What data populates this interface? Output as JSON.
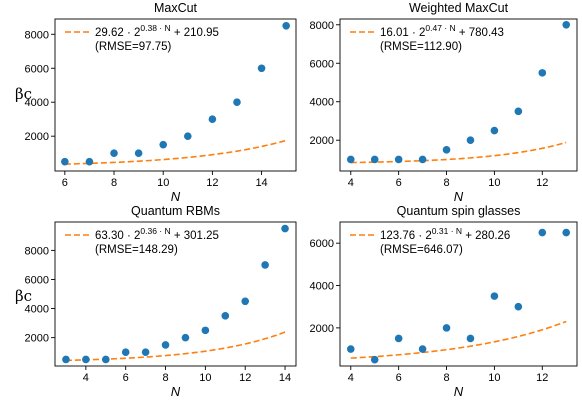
{
  "figure": {
    "shared_ylabel": "βc"
  },
  "chart_data": [
    {
      "type": "scatter",
      "title": "MaxCut",
      "xlabel": "N",
      "ylabel": "βc",
      "xlim": [
        5.6,
        15.4
      ],
      "ylim": [
        -50,
        8900
      ],
      "xticks": [
        6,
        8,
        10,
        12,
        14
      ],
      "yticks": [
        2000,
        4000,
        6000,
        8000
      ],
      "grid": false,
      "legend_position": "top-left",
      "fit": {
        "a": 29.62,
        "b": 0.38,
        "c": 210.95
      },
      "legend": {
        "fit_prefix": "29.62 · 2",
        "fit_exponent": "0.38 · N",
        "fit_suffix": " + 210.95",
        "rmse": "(RMSE=97.75)"
      },
      "series": [
        {
          "x": [
            6,
            7,
            8,
            9,
            10,
            11,
            12,
            13,
            14,
            15
          ],
          "y": [
            500,
            500,
            1000,
            1000,
            1500,
            2000,
            3000,
            4000,
            6000,
            8500
          ]
        }
      ],
      "colors": {
        "points": "#1f77b4",
        "fit": "#ff7f0e"
      }
    },
    {
      "type": "scatter",
      "title": "Weighted MaxCut",
      "xlabel": "N",
      "ylabel": "",
      "xlim": [
        3.55,
        13.45
      ],
      "ylim": [
        400,
        8300
      ],
      "xticks": [
        4,
        6,
        8,
        10,
        12
      ],
      "yticks": [
        2000,
        4000,
        6000,
        8000
      ],
      "grid": false,
      "legend_position": "top-left",
      "fit": {
        "a": 16.01,
        "b": 0.47,
        "c": 780.43
      },
      "legend": {
        "fit_prefix": "16.01 · 2",
        "fit_exponent": "0.47 · N",
        "fit_suffix": " + 780.43",
        "rmse": "(RMSE=112.90)"
      },
      "series": [
        {
          "x": [
            4,
            5,
            6,
            7,
            8,
            9,
            10,
            11,
            12,
            13
          ],
          "y": [
            1000,
            1000,
            1000,
            1000,
            1500,
            2000,
            2500,
            3500,
            5500,
            8000
          ]
        }
      ],
      "colors": {
        "points": "#1f77b4",
        "fit": "#ff7f0e"
      }
    },
    {
      "type": "scatter",
      "title": "Quantum RBMs",
      "xlabel": "N",
      "ylabel": "βc",
      "xlim": [
        2.45,
        14.55
      ],
      "ylim": [
        50,
        9950
      ],
      "xticks": [
        4,
        6,
        8,
        10,
        12,
        14
      ],
      "yticks": [
        2000,
        4000,
        6000,
        8000
      ],
      "grid": false,
      "legend_position": "top-left",
      "fit": {
        "a": 63.3,
        "b": 0.36,
        "c": 301.25
      },
      "legend": {
        "fit_prefix": "63.30 · 2",
        "fit_exponent": "0.36 · N",
        "fit_suffix": " + 301.25",
        "rmse": "(RMSE=148.29)"
      },
      "series": [
        {
          "x": [
            3,
            4,
            5,
            6,
            7,
            8,
            9,
            10,
            11,
            12,
            13,
            14
          ],
          "y": [
            500,
            500,
            500,
            1000,
            1000,
            1500,
            2000,
            2500,
            3500,
            4500,
            7000,
            9500
          ]
        }
      ],
      "colors": {
        "points": "#1f77b4",
        "fit": "#ff7f0e"
      }
    },
    {
      "type": "scatter",
      "title": "Quantum spin glasses",
      "xlabel": "N",
      "ylabel": "",
      "xlim": [
        3.55,
        13.45
      ],
      "ylim": [
        200,
        7000
      ],
      "xticks": [
        4,
        6,
        8,
        10,
        12
      ],
      "yticks": [
        2000,
        4000,
        6000
      ],
      "grid": false,
      "legend_position": "top-left",
      "fit": {
        "a": 123.76,
        "b": 0.31,
        "c": 280.26
      },
      "legend": {
        "fit_prefix": "123.76 · 2",
        "fit_exponent": "0.31 · N",
        "fit_suffix": " + 280.26",
        "rmse": "(RMSE=646.07)"
      },
      "series": [
        {
          "x": [
            4,
            5,
            6,
            7,
            8,
            9,
            10,
            11,
            12,
            13
          ],
          "y": [
            1000,
            500,
            1500,
            1000,
            2000,
            1500,
            3500,
            3000,
            6500,
            6500
          ]
        }
      ],
      "colors": {
        "points": "#1f77b4",
        "fit": "#ff7f0e"
      }
    }
  ]
}
